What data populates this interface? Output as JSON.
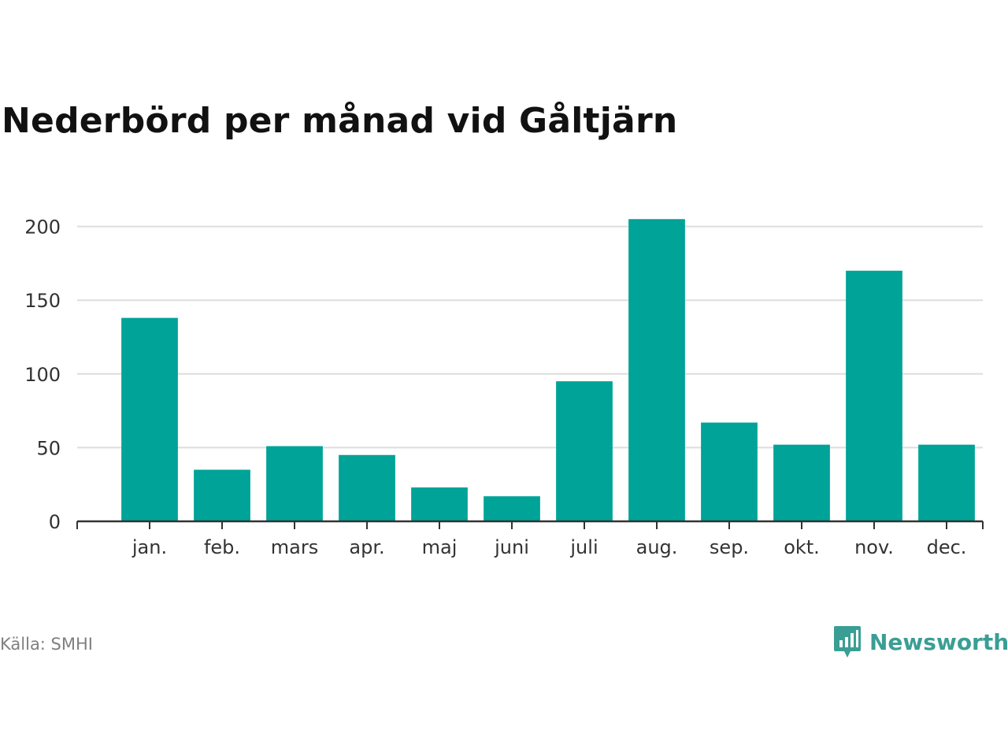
{
  "title": "Nederbörd per månad vid Gåltjärn",
  "source": "Källa: SMHI",
  "brand": {
    "name": "Newsworthy",
    "icon": "newsworthy-logo-icon",
    "color": "#3a9e94"
  },
  "colors": {
    "bar": "#00a398",
    "grid": "#dddddd",
    "axis": "#333333"
  },
  "chart_data": {
    "type": "bar",
    "title": "Nederbörd per månad vid Gåltjärn",
    "categories": [
      "jan.",
      "feb.",
      "mars",
      "apr.",
      "maj",
      "juni",
      "juli",
      "aug.",
      "sep.",
      "okt.",
      "nov.",
      "dec."
    ],
    "values": [
      138,
      35,
      51,
      45,
      23,
      17,
      95,
      205,
      67,
      52,
      170,
      52
    ],
    "yticks": [
      0,
      50,
      100,
      150,
      200
    ],
    "ylim": [
      0,
      205
    ],
    "xlabel": "",
    "ylabel": "",
    "grid": true,
    "legend": "none"
  }
}
